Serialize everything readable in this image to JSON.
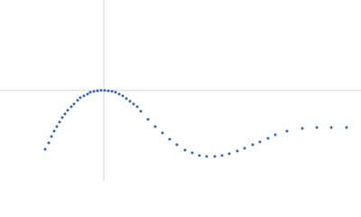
{
  "chart_data": {
    "type": "scatter",
    "xlim": [
      -115,
      285
    ],
    "ylim": [
      -100,
      100
    ],
    "color": "#3a66ad",
    "x": [
      -65,
      -61,
      -58,
      -55,
      -52,
      -49,
      -46,
      -43,
      -40,
      -36,
      -33,
      -29,
      -26,
      -22,
      -18,
      -15,
      -11,
      -7,
      -3,
      1,
      5,
      9,
      13,
      17,
      21,
      25,
      29,
      33,
      37,
      41,
      49,
      57,
      65,
      73,
      81,
      90,
      98,
      106,
      114,
      123,
      131,
      139,
      148,
      156,
      165,
      173,
      182,
      190,
      203,
      220,
      236,
      252,
      269
    ],
    "values": [
      -65,
      -58,
      -51,
      -45,
      -40,
      -35,
      -30,
      -26,
      -22,
      -18,
      -15,
      -11,
      -8,
      -6,
      -4,
      -2,
      -1,
      -0.5,
      0,
      0,
      -0.5,
      -1,
      -2,
      -4,
      -6,
      -9,
      -12,
      -15,
      -18,
      -23,
      -32,
      -40,
      -47,
      -54,
      -60,
      -66,
      -69,
      -72,
      -73,
      -73,
      -72,
      -70,
      -67,
      -64,
      -60,
      -57,
      -53,
      -49,
      -45,
      -42,
      -41,
      -41,
      -41
    ]
  }
}
